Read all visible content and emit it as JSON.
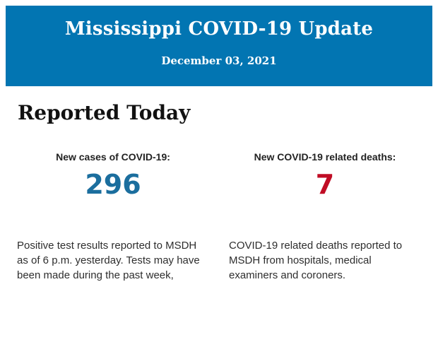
{
  "page": {
    "background_color": "#ffffff"
  },
  "header": {
    "title": "Mississippi COVID-19 Update",
    "date": "December 03, 2021",
    "background_color": "#0275B2",
    "text_color": "#ffffff"
  },
  "section": {
    "heading": "Reported Today"
  },
  "stats": {
    "cases": {
      "label": "New cases of COVID-19:",
      "value": "296",
      "value_color": "#1B6E9E",
      "description": "Positive test results reported to MSDH as of 6 p.m. yesterday. Tests may have been made during the past week,"
    },
    "deaths": {
      "label": "New COVID-19 related deaths:",
      "value": "7",
      "value_color": "#C00D25",
      "description": "COVID-19 related deaths reported to MSDH from hospitals, medical examiners and coroners."
    }
  }
}
